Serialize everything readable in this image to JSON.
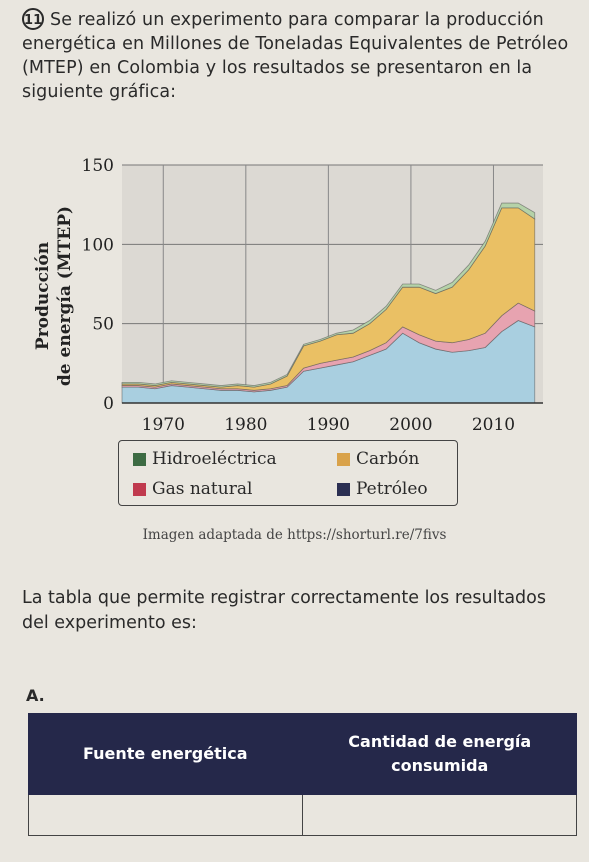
{
  "question": {
    "number": "11.",
    "text": "Se realizó un experimento para comparar la producción energética en Millones de Toneladas Equivalentes de Petróleo (MTEP) en Colombia y los resultados se presentaron en la siguiente gráfica:",
    "source": "Imagen adaptada de https://shorturl.re/7fivs",
    "prompt": "La tabla que permite registrar correctamente los resultados del experimento es:"
  },
  "option": {
    "letter": "A.",
    "columns": [
      "Fuente energética",
      "Cantidad de energía consumida"
    ]
  },
  "colors": {
    "Petróleo": "#a9cfe0",
    "Gas natural": "#e7a3b0",
    "Carbón": "#eac064",
    "Hidroeléctrica": "#b5d2a8",
    "background": "#e9e6df",
    "table_header": "#25284a"
  },
  "legend": [
    {
      "label": "Hidroeléctrica",
      "color": "#3d6b43"
    },
    {
      "label": "Carbón",
      "color": "#d9a24a"
    },
    {
      "label": "Gas natural",
      "color": "#c03a4e"
    },
    {
      "label": "Petróleo",
      "color": "#2b2f52"
    }
  ],
  "chart_data": {
    "type": "area",
    "stacked": true,
    "ylabel": "Producción de energía (MTEP)",
    "xlabel": "",
    "xticks": [
      1970,
      1980,
      1990,
      2000,
      2010
    ],
    "yticks": [
      0,
      50,
      100,
      150
    ],
    "xlim": [
      1965,
      2016
    ],
    "ylim": [
      0,
      150
    ],
    "grid": true,
    "x": [
      1965,
      1967,
      1969,
      1971,
      1973,
      1975,
      1977,
      1979,
      1981,
      1983,
      1985,
      1987,
      1989,
      1991,
      1993,
      1995,
      1997,
      1999,
      2001,
      2003,
      2005,
      2007,
      2009,
      2011,
      2013,
      2015
    ],
    "series": [
      {
        "name": "Petróleo",
        "values": [
          10,
          10,
          9,
          11,
          10,
          9,
          8,
          8,
          7,
          8,
          10,
          20,
          22,
          24,
          26,
          30,
          34,
          44,
          38,
          34,
          32,
          33,
          35,
          45,
          52,
          48
        ]
      },
      {
        "name": "Gas natural",
        "values": [
          1,
          1,
          1,
          1,
          1,
          1,
          1,
          1,
          1,
          1,
          1,
          2,
          3,
          3,
          3,
          3,
          4,
          4,
          5,
          5,
          6,
          7,
          9,
          10,
          11,
          10
        ]
      },
      {
        "name": "Carbón",
        "values": [
          1,
          1,
          1,
          1,
          1,
          1,
          1,
          2,
          2,
          3,
          6,
          14,
          14,
          16,
          15,
          17,
          21,
          25,
          30,
          30,
          35,
          44,
          55,
          68,
          60,
          58
        ]
      },
      {
        "name": "Hidroeléctrica",
        "values": [
          1,
          1,
          1,
          1,
          1,
          1,
          1,
          1,
          1,
          1,
          1,
          1,
          1,
          1,
          2,
          2,
          2,
          2,
          2,
          2,
          3,
          3,
          3,
          3,
          3,
          4
        ]
      }
    ]
  }
}
